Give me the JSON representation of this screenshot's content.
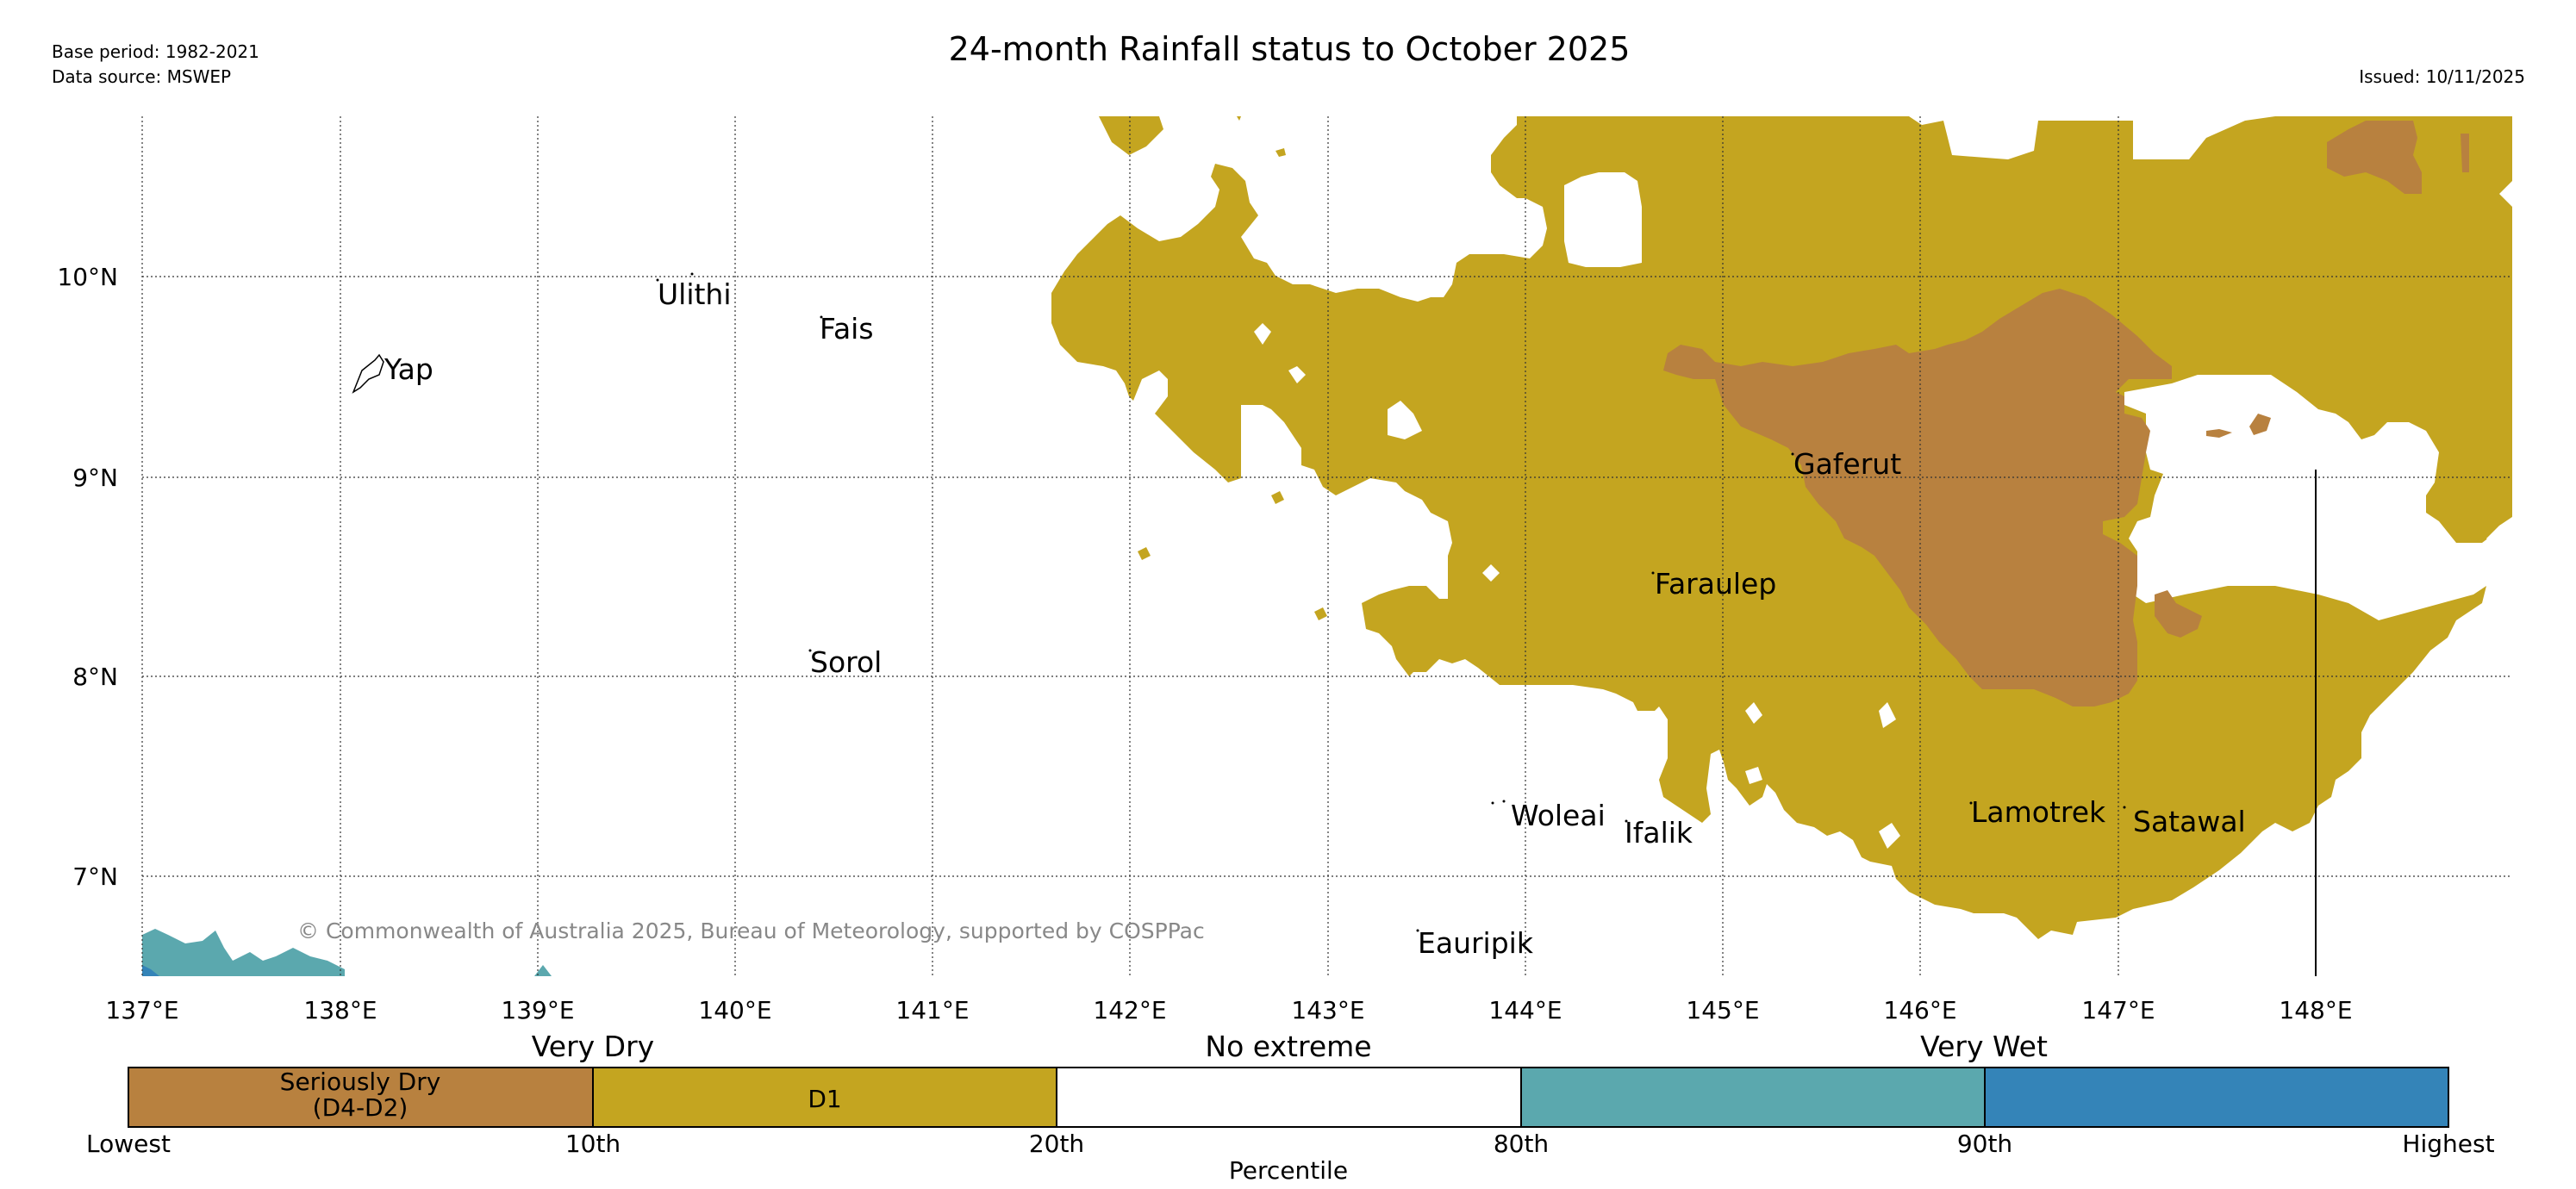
{
  "header": {
    "title": "24-month Rainfall status to October 2025",
    "base_period": "Base period: 1982-2021",
    "data_source": "Data source: MSWEP",
    "issued": "Issued: 10/11/2025"
  },
  "map": {
    "lon_labels": [
      "137°E",
      "138°E",
      "139°E",
      "140°E",
      "141°E",
      "142°E",
      "143°E",
      "144°E",
      "145°E",
      "146°E",
      "147°E",
      "148°E"
    ],
    "lat_labels": [
      "10°N",
      "9°N",
      "8°N",
      "7°N"
    ],
    "islands": [
      "Yap",
      "Ulithi",
      "Fais",
      "Sorol",
      "Gaferut",
      "Faraulep",
      "Woleai",
      "Ifalik",
      "Lamotrek",
      "Satawal",
      "Eauripik"
    ],
    "copyright": "© Commonwealth of Australia 2025, Bureau of Meteorology, supported by COSPPac"
  },
  "legend": {
    "group_labels": [
      "Very Dry",
      "No extreme",
      "Very Wet"
    ],
    "categories": [
      {
        "label_line1": "Seriously Dry",
        "label_line2": "(D4-D2)",
        "color": "#b8813f"
      },
      {
        "label_line1": "D1",
        "label_line2": "",
        "color": "#c4a520"
      },
      {
        "label_line1": "",
        "label_line2": "",
        "color": "#ffffff"
      },
      {
        "label_line1": "",
        "label_line2": "",
        "color": "#5ba8ae"
      },
      {
        "label_line1": "",
        "label_line2": "",
        "color": "#3484b8"
      }
    ],
    "tick_labels": [
      "Lowest",
      "10th",
      "20th",
      "80th",
      "90th",
      "Highest"
    ],
    "axis_label": "Percentile"
  },
  "colors": {
    "seriously_dry": "#b8813f",
    "d1": "#c4a520",
    "very_wet_light": "#5ba8ae",
    "very_wet_dark": "#3484b8"
  }
}
